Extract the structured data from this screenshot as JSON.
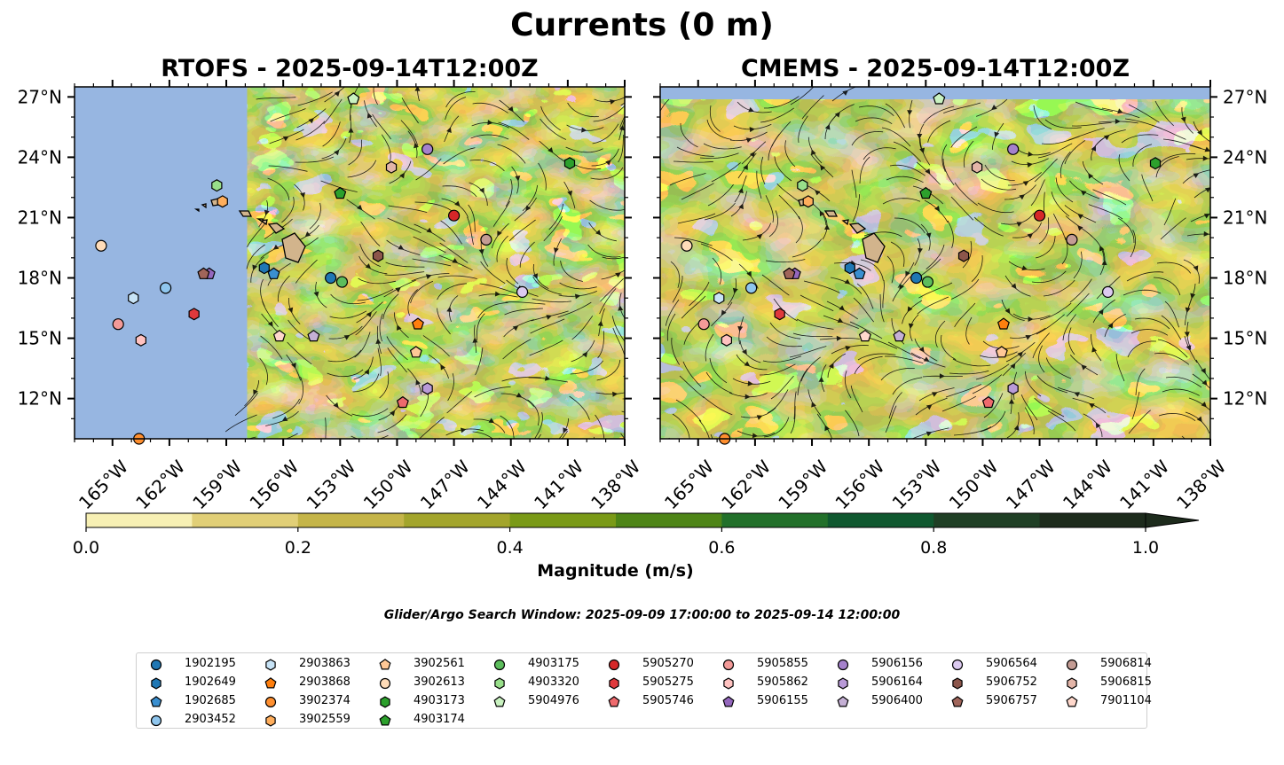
{
  "title": "Currents (0 m)",
  "panels": [
    {
      "id": "rtofs",
      "title": "RTOFS - 2025-09-14T12:00Z"
    },
    {
      "id": "cmems",
      "title": "CMEMS - 2025-09-14T12:00Z"
    }
  ],
  "colorbar": {
    "label": "Magnitude (m/s)",
    "ticks": [
      "0.0",
      "0.2",
      "0.4",
      "0.6",
      "0.8",
      "1.0"
    ],
    "colors": [
      "#f7f0b4",
      "#e1cf77",
      "#c5b549",
      "#a3a52c",
      "#7a9a17",
      "#4e8517",
      "#22702a",
      "#0f582f",
      "#1f3f25",
      "#1d2b1c"
    ],
    "extend": "max"
  },
  "search_window": "Glider/Argo Search Window: 2025-09-09 17:00:00 to 2025-09-14 12:00:00",
  "legend": [
    {
      "id": "1902195",
      "marker": "circle",
      "color": "#1f77b4"
    },
    {
      "id": "1902649",
      "marker": "hexagon",
      "color": "#1f77b4"
    },
    {
      "id": "1902685",
      "marker": "pentagon",
      "color": "#3a8fd0"
    },
    {
      "id": "2903452",
      "marker": "circle",
      "color": "#8fc6ee"
    },
    {
      "id": "2903863",
      "marker": "hexagon",
      "color": "#c8e4f7"
    },
    {
      "id": "2903868",
      "marker": "pentagon",
      "color": "#ff7f0e"
    },
    {
      "id": "3902374",
      "marker": "circle",
      "color": "#ff8f2f"
    },
    {
      "id": "3902559",
      "marker": "hexagon",
      "color": "#ffae5c"
    },
    {
      "id": "3902561",
      "marker": "pentagon",
      "color": "#ffc896"
    },
    {
      "id": "3902613",
      "marker": "circle",
      "color": "#ffdcb8"
    },
    {
      "id": "4903173",
      "marker": "hexagon",
      "color": "#2ca02c"
    },
    {
      "id": "4903174",
      "marker": "pentagon",
      "color": "#2ca02c"
    },
    {
      "id": "4903175",
      "marker": "circle",
      "color": "#5cbd5c"
    },
    {
      "id": "4903320",
      "marker": "hexagon",
      "color": "#98df8a"
    },
    {
      "id": "5904976",
      "marker": "pentagon",
      "color": "#c9f2c0"
    },
    {
      "id": "5905270",
      "marker": "circle",
      "color": "#d62728"
    },
    {
      "id": "5905275",
      "marker": "hexagon",
      "color": "#e0393c"
    },
    {
      "id": "5905746",
      "marker": "pentagon",
      "color": "#ee6a6d"
    },
    {
      "id": "5905855",
      "marker": "circle",
      "color": "#f39a98"
    },
    {
      "id": "5905862",
      "marker": "hexagon",
      "color": "#ffc2c0"
    },
    {
      "id": "5906155",
      "marker": "pentagon",
      "color": "#9467bd"
    },
    {
      "id": "5906156",
      "marker": "circle",
      "color": "#a581cc"
    },
    {
      "id": "5906164",
      "marker": "hexagon",
      "color": "#b99ad8"
    },
    {
      "id": "5906400",
      "marker": "pentagon",
      "color": "#c5b0d5"
    },
    {
      "id": "5906564",
      "marker": "circle",
      "color": "#dccaf0"
    },
    {
      "id": "5906752",
      "marker": "hexagon",
      "color": "#8c564b"
    },
    {
      "id": "5906757",
      "marker": "pentagon",
      "color": "#a0655a"
    },
    {
      "id": "5906814",
      "marker": "circle",
      "color": "#c49c94"
    },
    {
      "id": "5906815",
      "marker": "hexagon",
      "color": "#e3b5a8"
    },
    {
      "id": "7901104",
      "marker": "pentagon",
      "color": "#ffd8cc"
    }
  ],
  "chart_data": {
    "type": "map",
    "variable": "Surface current magnitude",
    "units": "m/s",
    "depth_m": 0,
    "lon_range": [
      -167,
      -138
    ],
    "lat_range": [
      10,
      27.5
    ],
    "lon_ticks": [
      "165°W",
      "162°W",
      "159°W",
      "156°W",
      "153°W",
      "150°W",
      "147°W",
      "144°W",
      "141°W",
      "138°W"
    ],
    "lat_ticks": [
      "27°N",
      "24°N",
      "21°N",
      "18°N",
      "15°N",
      "12°N"
    ],
    "lon_tick_values": [
      -165,
      -162,
      -159,
      -156,
      -153,
      -150,
      -147,
      -144,
      -141,
      -138
    ],
    "lat_tick_values": [
      27,
      24,
      21,
      18,
      15,
      12
    ],
    "rtofs_data_lon_min": -157.9,
    "floats": [
      {
        "id": "1902195",
        "lon": -153.5,
        "lat": 18.0
      },
      {
        "id": "1902649",
        "lon": -157.0,
        "lat": 18.5
      },
      {
        "id": "1902685",
        "lon": -156.5,
        "lat": 18.2
      },
      {
        "id": "2903452",
        "lon": -162.2,
        "lat": 17.5
      },
      {
        "id": "2903863",
        "lon": -163.9,
        "lat": 17.0
      },
      {
        "id": "2903868",
        "lon": -148.9,
        "lat": 15.7
      },
      {
        "id": "3902374",
        "lon": -163.6,
        "lat": 10.0
      },
      {
        "id": "3902559",
        "lon": -159.2,
        "lat": 21.8
      },
      {
        "id": "3902561",
        "lon": -149.0,
        "lat": 14.3
      },
      {
        "id": "3902613",
        "lon": -165.6,
        "lat": 19.6
      },
      {
        "id": "4903173",
        "lon": -140.9,
        "lat": 23.7
      },
      {
        "id": "4903174",
        "lon": -153.0,
        "lat": 22.2
      },
      {
        "id": "4903175",
        "lon": -152.9,
        "lat": 17.8
      },
      {
        "id": "4903320",
        "lon": -159.5,
        "lat": 22.6
      },
      {
        "id": "5904976",
        "lon": -152.3,
        "lat": 26.9
      },
      {
        "id": "5905270",
        "lon": -147.0,
        "lat": 21.1
      },
      {
        "id": "5905275",
        "lon": -160.7,
        "lat": 16.2
      },
      {
        "id": "5905746",
        "lon": -149.7,
        "lat": 11.8
      },
      {
        "id": "5905855",
        "lon": -164.7,
        "lat": 15.7
      },
      {
        "id": "5905862",
        "lon": -163.5,
        "lat": 14.9
      },
      {
        "id": "5906155",
        "lon": -159.9,
        "lat": 18.2
      },
      {
        "id": "5906156",
        "lon": -148.4,
        "lat": 24.4
      },
      {
        "id": "5906164",
        "lon": -148.4,
        "lat": 12.5
      },
      {
        "id": "5906400",
        "lon": -154.4,
        "lat": 15.1
      },
      {
        "id": "5906564",
        "lon": -143.4,
        "lat": 17.3
      },
      {
        "id": "5906752",
        "lon": -151.0,
        "lat": 19.1
      },
      {
        "id": "5906757",
        "lon": -160.2,
        "lat": 18.2
      },
      {
        "id": "5906814",
        "lon": -145.3,
        "lat": 19.9
      },
      {
        "id": "5906815",
        "lon": -150.3,
        "lat": 23.5
      },
      {
        "id": "7901104",
        "lon": -156.2,
        "lat": 15.1
      }
    ]
  }
}
